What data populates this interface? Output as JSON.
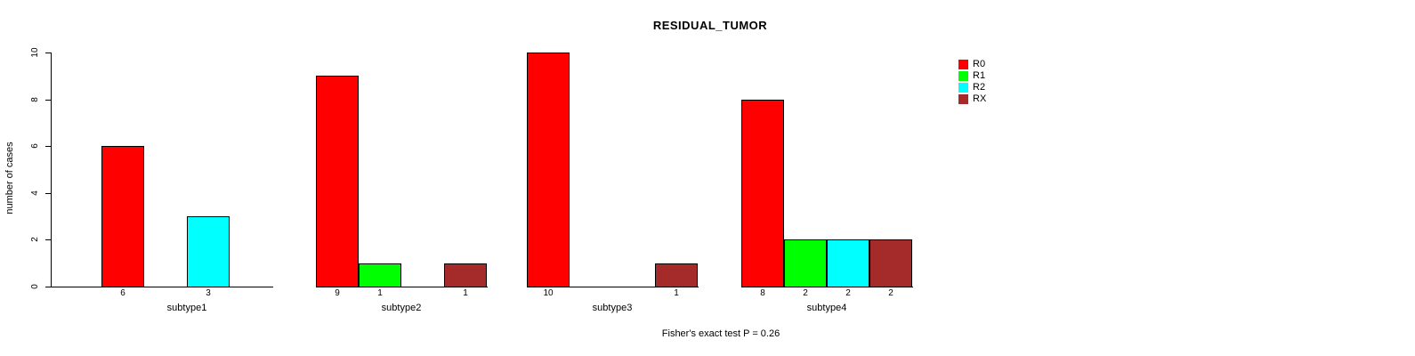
{
  "chart_data": {
    "type": "bar",
    "title": "RESIDUAL_TUMOR",
    "ylabel": "number of cases",
    "xlabel": "",
    "ylim": [
      0,
      10
    ],
    "yticks": [
      0,
      2,
      4,
      6,
      8,
      10
    ],
    "categories": [
      "subtype1",
      "subtype2",
      "subtype3",
      "subtype4"
    ],
    "series": [
      {
        "name": "R0",
        "color": "#FF0000",
        "values": [
          6,
          9,
          10,
          8
        ]
      },
      {
        "name": "R1",
        "color": "#00FF00",
        "values": [
          0,
          1,
          0,
          2
        ]
      },
      {
        "name": "R2",
        "color": "#00FFFF",
        "values": [
          3,
          0,
          0,
          2
        ]
      },
      {
        "name": "RX",
        "color": "#A52A2A",
        "values": [
          0,
          1,
          1,
          2
        ]
      }
    ],
    "show_value_labels_for_nonzero_bars": true,
    "annotation": "Fisher's exact test P = 0.26",
    "legend_position": "top-right",
    "grid": false,
    "axis_color": "#000000",
    "background_color": "#FFFFFF"
  }
}
